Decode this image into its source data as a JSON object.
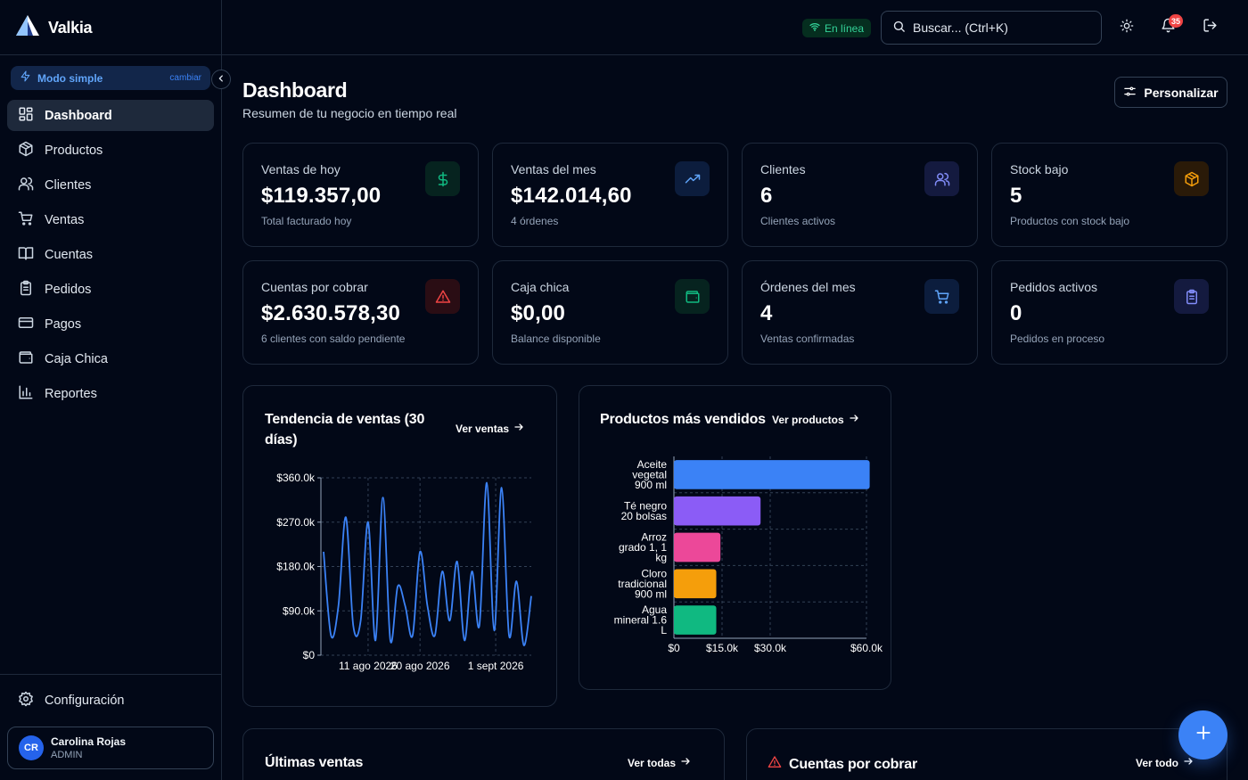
{
  "app": {
    "name": "Valkia"
  },
  "sidebar": {
    "mode": {
      "label": "Modo simple",
      "change": "cambiar"
    },
    "items": [
      {
        "label": "Dashboard",
        "icon": "dashboard-icon",
        "active": true
      },
      {
        "label": "Productos",
        "icon": "box-icon"
      },
      {
        "label": "Clientes",
        "icon": "users-icon"
      },
      {
        "label": "Ventas",
        "icon": "cart-icon"
      },
      {
        "label": "Cuentas",
        "icon": "book-icon"
      },
      {
        "label": "Pedidos",
        "icon": "clipboard-icon"
      },
      {
        "label": "Pagos",
        "icon": "credit-card-icon"
      },
      {
        "label": "Caja Chica",
        "icon": "wallet-icon"
      },
      {
        "label": "Reportes",
        "icon": "bar-chart-icon"
      }
    ],
    "config_label": "Configuración",
    "user": {
      "initials": "CR",
      "name": "Carolina Rojas",
      "role": "ADMIN"
    }
  },
  "topbar": {
    "status": "En línea",
    "search_placeholder": "Buscar... (Ctrl+K)",
    "notifications_count": "35"
  },
  "header": {
    "title": "Dashboard",
    "subtitle": "Resumen de tu negocio en tiempo real",
    "customize_label": "Personalizar"
  },
  "stats": [
    {
      "title": "Ventas de hoy",
      "value": "$119.357,00",
      "desc": "Total facturado hoy",
      "icon": "dollar-icon",
      "color": "#10b981"
    },
    {
      "title": "Ventas del mes",
      "value": "$142.014,60",
      "desc": "4 órdenes",
      "icon": "trending-up-icon",
      "color": "#60a5fa"
    },
    {
      "title": "Clientes",
      "value": "6",
      "desc": "Clientes activos",
      "icon": "users-icon",
      "color": "#818cf8"
    },
    {
      "title": "Stock bajo",
      "value": "5",
      "desc": "Productos con stock bajo",
      "icon": "box-icon",
      "color": "#f59e0b"
    },
    {
      "title": "Cuentas por cobrar",
      "value": "$2.630.578,30",
      "desc": "6 clientes con saldo pendiente",
      "icon": "alert-triangle-icon",
      "color": "#ef4444"
    },
    {
      "title": "Caja chica",
      "value": "$0,00",
      "desc": "Balance disponible",
      "icon": "wallet-icon",
      "color": "#10b981"
    },
    {
      "title": "Órdenes del mes",
      "value": "4",
      "desc": "Ventas confirmadas",
      "icon": "cart-icon",
      "color": "#60a5fa"
    },
    {
      "title": "Pedidos activos",
      "value": "0",
      "desc": "Pedidos en proceso",
      "icon": "clipboard-icon",
      "color": "#818cf8"
    }
  ],
  "trend_panel": {
    "title_line1": "Tendencia de ventas (30",
    "title_line2": "días)",
    "link": "Ver ventas"
  },
  "top_products_panel": {
    "title": "Productos más vendidos",
    "link": "Ver productos"
  },
  "latest_sales_panel": {
    "title": "Últimas ventas",
    "link": "Ver todas"
  },
  "receivables_panel": {
    "title": "Cuentas por cobrar",
    "link": "Ver todo"
  },
  "chart_data": [
    {
      "type": "line",
      "title": "Tendencia de ventas (30 días)",
      "y_ticks": [
        "$0",
        "$90.0k",
        "$180.0k",
        "$270.0k",
        "$360.0k"
      ],
      "ylim": [
        0,
        360000
      ],
      "x_ticks": [
        "11 ago 2026",
        "20 ago 2026",
        "1 sept 2026"
      ],
      "series": [
        {
          "color": "#3b82f6",
          "values": [
            210000,
            40000,
            100000,
            280000,
            60000,
            70000,
            270000,
            30000,
            320000,
            30000,
            140000,
            100000,
            40000,
            210000,
            100000,
            40000,
            170000,
            70000,
            190000,
            30000,
            170000,
            60000,
            350000,
            50000,
            340000,
            40000,
            150000,
            20000,
            120000
          ]
        }
      ],
      "grid": true
    },
    {
      "type": "bar",
      "orientation": "horizontal",
      "title": "Productos más vendidos",
      "categories": [
        "Aceite vegetal 900 ml",
        "Té negro 20 bolsas",
        "Arroz grado 1, 1 kg",
        "Cloro tradicional 900 ml",
        "Agua mineral 1.6 L"
      ],
      "category_lines": [
        [
          "Aceite",
          "vegetal",
          "900 ml"
        ],
        [
          "Té negro",
          "20 bolsas"
        ],
        [
          "Arroz",
          "grado 1, 1",
          "kg"
        ],
        [
          "Cloro",
          "tradicional",
          "900 ml"
        ],
        [
          "Agua",
          "mineral 1.6",
          "L"
        ]
      ],
      "values": [
        61000,
        27000,
        14500,
        13200,
        13200
      ],
      "colors": [
        "#3b82f6",
        "#8b5cf6",
        "#ec4899",
        "#f59e0b",
        "#10b981"
      ],
      "x_ticks": [
        {
          "label": "$0",
          "value": 0
        },
        {
          "label": "$15.0k",
          "value": 15000
        },
        {
          "label": "$30.0k",
          "value": 30000
        },
        {
          "label": "$60.0k",
          "value": 60000
        }
      ],
      "xlim": [
        0,
        60000
      ],
      "grid": true
    }
  ]
}
